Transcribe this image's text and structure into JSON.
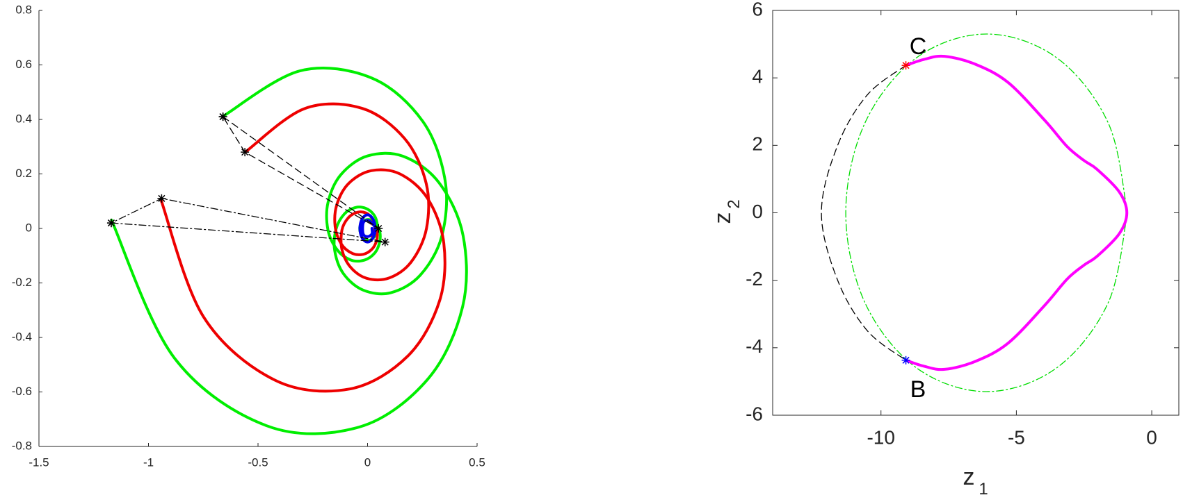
{
  "chart_data": [
    {
      "type": "line",
      "box": false,
      "xlim": [
        -1.5,
        0.5
      ],
      "xticks": [
        -1.5,
        -1,
        -0.5,
        0,
        0.5
      ],
      "ylim": [
        -0.8,
        0.8
      ],
      "yticks": [
        -0.8,
        -0.6,
        -0.4,
        -0.2,
        0,
        0.2,
        0.4,
        0.6,
        0.8
      ],
      "series": [
        {
          "color": "#00ee00",
          "style": "solid",
          "width": 4,
          "x": [
            -1.169,
            -0.883,
            -0.457,
            -0.035,
            0.277,
            0.434,
            0.436,
            0.326,
            0.162,
            0.0,
            -0.121,
            -0.18,
            -0.181,
            -0.139,
            -0.076,
            -0.014,
            0.033,
            0.055,
            0.056,
            0.039,
            0.015,
            -0.009,
            -0.026,
            -0.035,
            -0.035
          ],
          "values": [
            0.031,
            -0.474,
            -0.725,
            -0.728,
            -0.551,
            -0.287,
            -0.026,
            0.168,
            0.265,
            0.266,
            0.198,
            0.097,
            -0.004,
            -0.078,
            -0.116,
            -0.116,
            -0.09,
            -0.051,
            -0.012,
            0.016,
            0.031,
            0.031,
            0.021,
            0.006,
            -0.009
          ]
        },
        {
          "color": "#00ee00",
          "style": "solid",
          "width": 4,
          "x": [
            -0.659,
            -0.31,
            0.019,
            0.252,
            0.354,
            0.339,
            0.24,
            0.105,
            -0.021,
            -0.111,
            -0.15,
            -0.144,
            -0.106,
            -0.054,
            -0.006,
            0.029,
            0.044,
            0.042,
            0.027,
            0.007,
            -0.012
          ],
          "values": [
            0.412,
            0.578,
            0.552,
            0.393,
            0.176,
            -0.028,
            -0.172,
            -0.236,
            -0.226,
            -0.165,
            -0.081,
            -0.003,
            0.053,
            0.077,
            0.073,
            0.05,
            0.018,
            -0.013,
            -0.034,
            -0.044,
            -0.042
          ]
        },
        {
          "color": "#ee0000",
          "style": "solid",
          "width": 4,
          "x": [
            -0.943,
            -0.749,
            -0.422,
            -0.081,
            0.184,
            0.329,
            0.348,
            0.274,
            0.148,
            0.017,
            -0.085,
            -0.14,
            -0.148,
            -0.12,
            -0.071,
            -0.02,
            0.019,
            0.04,
            0.044,
            0.032,
            0.013
          ],
          "values": [
            0.105,
            -0.324,
            -0.557,
            -0.589,
            -0.468,
            -0.265,
            -0.054,
            0.11,
            0.2,
            0.212,
            0.166,
            0.088,
            0.007,
            -0.057,
            -0.091,
            -0.095,
            -0.077,
            -0.048,
            -0.017,
            0.008,
            0.021
          ]
        },
        {
          "color": "#ee0000",
          "style": "solid",
          "width": 4,
          "x": [
            -0.557,
            -0.29,
            -0.026,
            0.17,
            0.268,
            0.269,
            0.2,
            0.098,
            -0.004,
            -0.079,
            -0.117,
            -0.117,
            -0.088,
            -0.047,
            -0.008,
            0.02,
            0.032,
            0.031,
            0.02
          ],
          "values": [
            0.281,
            0.439,
            0.441,
            0.329,
            0.164,
            0.0,
            -0.122,
            -0.182,
            -0.183,
            -0.141,
            -0.077,
            -0.006,
            0.039,
            0.059,
            0.057,
            0.038,
            0.013,
            -0.011,
            -0.029
          ]
        },
        {
          "color": "#0000ee",
          "style": "solid",
          "width": 4,
          "x": [
            0.035,
            0.03,
            0.017,
            0.0,
            -0.017,
            -0.03,
            -0.035,
            -0.03,
            -0.017,
            0.0,
            0.017,
            0.03,
            0.035,
            0.02,
            0.0,
            -0.02,
            -0.02,
            0.0,
            0.02,
            0.02
          ],
          "values": [
            0.0,
            0.025,
            0.043,
            0.05,
            0.043,
            0.025,
            0.0,
            -0.025,
            -0.043,
            -0.05,
            -0.043,
            -0.025,
            0.0,
            0.02,
            0.03,
            0.02,
            -0.02,
            -0.03,
            -0.02,
            0.0
          ]
        },
        {
          "color": "#000000",
          "style": "dashed",
          "width": 1.3,
          "marker": "*",
          "x": [
            -0.66,
            0.05,
            -0.56,
            -0.66
          ],
          "values": [
            0.41,
            0.0,
            0.28,
            0.41
          ]
        },
        {
          "color": "#000000",
          "style": "dashdot",
          "width": 1.3,
          "marker": "*",
          "x": [
            -1.17,
            0.08,
            -0.94,
            -1.17
          ],
          "values": [
            0.02,
            -0.05,
            0.11,
            0.02
          ]
        }
      ]
    },
    {
      "type": "line",
      "box": true,
      "xlabel": "z",
      "xlabel_sub": "1",
      "ylabel": "z",
      "ylabel_sub": "2",
      "xlim": [
        -14,
        1
      ],
      "xticks": [
        -10,
        -5,
        0
      ],
      "ylim": [
        -6,
        6
      ],
      "yticks": [
        -6,
        -4,
        -2,
        0,
        2,
        4,
        6
      ],
      "annotations": [
        "C",
        "B"
      ],
      "series": [
        {
          "color": "#00dd00",
          "style": "dashdot",
          "width": 1.3,
          "x": [
            -0.9,
            -1.6,
            -3.5,
            -6.1,
            -8.7,
            -10.6,
            -11.3,
            -10.6,
            -8.7,
            -6.1,
            -3.5,
            -1.6,
            -0.9
          ],
          "values": [
            0,
            2.65,
            4.59,
            5.3,
            4.59,
            2.65,
            0,
            -2.65,
            -4.59,
            -5.3,
            -4.59,
            -2.65,
            0
          ]
        },
        {
          "color": "#000000",
          "style": "dashed",
          "width": 1.3,
          "x": [
            -9.08,
            -10.5,
            -11.6,
            -12.2,
            -11.6,
            -10.5,
            -9.08
          ],
          "values": [
            4.37,
            3.5,
            2.0,
            0,
            -2.0,
            -3.5,
            -4.37
          ]
        },
        {
          "color": "#ff00ff",
          "style": "solid",
          "width": 4,
          "x": [
            -9.08,
            -8.4,
            -7.65,
            -6.5,
            -5.3,
            -3.95,
            -3.12,
            -2.5,
            -2.02,
            -1.2,
            -0.92,
            -1.2,
            -2.02,
            -2.5,
            -3.12,
            -3.95,
            -5.3,
            -6.5,
            -7.65,
            -8.4,
            -9.08
          ],
          "values": [
            4.37,
            4.55,
            4.64,
            4.4,
            3.86,
            2.74,
            1.96,
            1.55,
            1.29,
            0.62,
            0,
            -0.62,
            -1.29,
            -1.55,
            -1.96,
            -2.74,
            -3.86,
            -4.4,
            -4.64,
            -4.55,
            -4.37
          ]
        },
        {
          "color": "#ff0000",
          "style": "none",
          "marker": "*",
          "x": [
            -9.08
          ],
          "values": [
            4.37
          ]
        },
        {
          "color": "#0000ff",
          "style": "none",
          "marker": "*",
          "x": [
            -9.08
          ],
          "values": [
            -4.37
          ]
        }
      ]
    }
  ]
}
